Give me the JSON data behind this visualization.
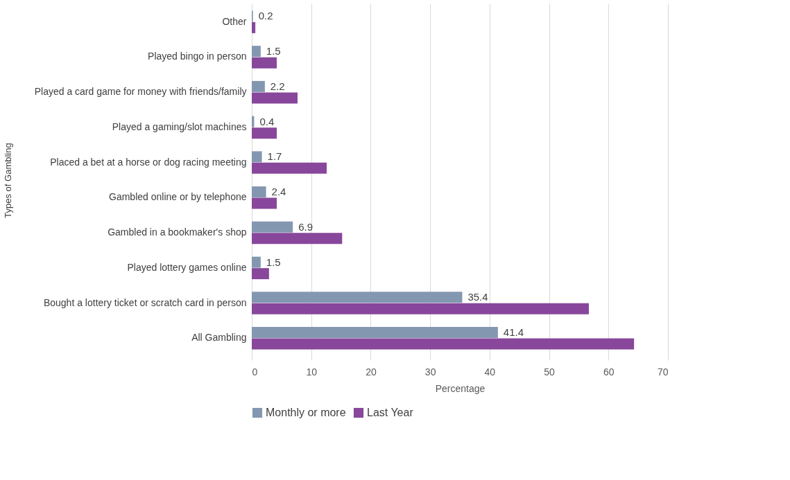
{
  "chart_data": {
    "type": "bar",
    "orientation": "horizontal",
    "xlabel": "Percentage",
    "ylabel": "Types of Gambling",
    "categories": [
      "Other",
      "Played bingo in person",
      "Played a card game for money with friends/family",
      "Played a gaming/slot machines",
      "Placed a bet at a horse or dog racing meeting",
      "Gambled online or by telephone",
      "Gambled in a bookmaker's shop",
      "Played lottery games online",
      "Bought a lottery ticket or scratch card in person",
      "All Gambling"
    ],
    "series": [
      {
        "name": "Monthly or more",
        "color": "#8497b0",
        "values": [
          0.2,
          1.5,
          2.2,
          0.4,
          1.7,
          2.4,
          6.9,
          1.5,
          35.4,
          41.4
        ],
        "value_labels": [
          "0.2",
          "1.5",
          "2.2",
          "0.4",
          "1.7",
          "2.4",
          "6.9",
          "1.5",
          "35.4",
          "41.4"
        ]
      },
      {
        "name": "Last Year",
        "color": "#88479b",
        "values": [
          0.6,
          4.2,
          7.7,
          4.2,
          12.6,
          4.2,
          15.2,
          2.9,
          56.7,
          64.3
        ]
      }
    ],
    "xlim": [
      0,
      70
    ],
    "xticks": [
      0,
      10,
      20,
      30,
      40,
      50,
      60,
      70
    ],
    "grid": "x",
    "legend": "bottom"
  }
}
